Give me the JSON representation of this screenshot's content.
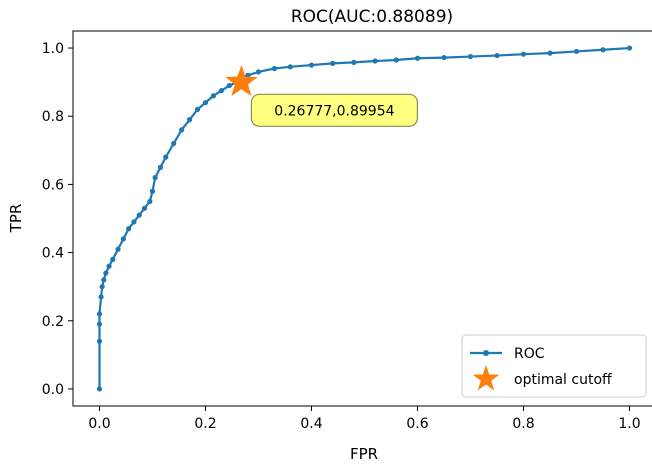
{
  "chart_data": {
    "type": "line",
    "title": "ROC(AUC:0.88089)",
    "xlabel": "FPR",
    "ylabel": "TPR",
    "xlim": [
      -0.05,
      1.05
    ],
    "ylim": [
      -0.05,
      1.05
    ],
    "xticks": [
      "0.0",
      "0.2",
      "0.4",
      "0.6",
      "0.8",
      "1.0"
    ],
    "yticks": [
      "0.0",
      "0.2",
      "0.4",
      "0.6",
      "0.8",
      "1.0"
    ],
    "grid": false,
    "legend_position": "lower-right",
    "series": [
      {
        "name": "ROC",
        "color": "#1f77b4",
        "marker": "dot",
        "x": [
          0.0,
          0.0,
          0.0,
          0.0,
          0.003,
          0.005,
          0.008,
          0.012,
          0.018,
          0.025,
          0.035,
          0.045,
          0.055,
          0.065,
          0.075,
          0.085,
          0.095,
          0.1,
          0.105,
          0.115,
          0.125,
          0.14,
          0.155,
          0.17,
          0.185,
          0.2,
          0.215,
          0.23,
          0.245,
          0.26,
          0.27,
          0.28,
          0.3,
          0.33,
          0.36,
          0.4,
          0.44,
          0.48,
          0.52,
          0.56,
          0.6,
          0.65,
          0.7,
          0.75,
          0.8,
          0.85,
          0.9,
          0.95,
          1.0
        ],
        "y": [
          0.0,
          0.14,
          0.19,
          0.22,
          0.27,
          0.3,
          0.32,
          0.34,
          0.36,
          0.38,
          0.41,
          0.44,
          0.47,
          0.49,
          0.51,
          0.53,
          0.55,
          0.58,
          0.62,
          0.65,
          0.68,
          0.72,
          0.76,
          0.79,
          0.82,
          0.84,
          0.86,
          0.875,
          0.89,
          0.9,
          0.91,
          0.92,
          0.93,
          0.94,
          0.945,
          0.95,
          0.955,
          0.958,
          0.962,
          0.965,
          0.97,
          0.972,
          0.975,
          0.978,
          0.982,
          0.985,
          0.99,
          0.995,
          1.0
        ]
      },
      {
        "name": "optimal cutoff",
        "color": "#ff7f0e",
        "marker": "star",
        "x": [
          0.26777
        ],
        "y": [
          0.89954
        ]
      }
    ],
    "annotation": {
      "text": "0.26777,0.89954",
      "x": 0.26777,
      "y": 0.89954,
      "background": "#ffff80"
    }
  }
}
